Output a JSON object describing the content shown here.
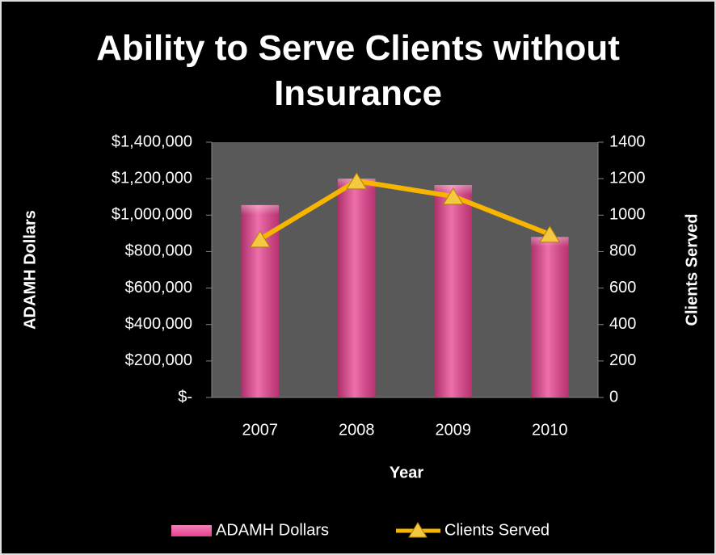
{
  "chart_data": {
    "type": "bar_line",
    "title": "Ability to Serve Clients without Insurance",
    "x_label": "Year",
    "y_label": "ADAMH Dollars",
    "y2_label": "Clients Served",
    "categories": [
      "2007",
      "2008",
      "2009",
      "2010"
    ],
    "series": [
      {
        "name": "ADAMH Dollars",
        "type": "bar",
        "color": "#e8408f",
        "values": [
          1055000,
          1200000,
          1165000,
          880000
        ]
      },
      {
        "name": "Clients Served",
        "type": "line",
        "axis": "y2",
        "color": "#f7b500",
        "values": [
          868,
          1187,
          1103,
          895
        ]
      }
    ],
    "ylim": [
      0,
      1400000
    ],
    "yticks": [
      {
        "value": 0,
        "label": "$-"
      },
      {
        "value": 200000,
        "label": "$200,000"
      },
      {
        "value": 400000,
        "label": "$400,000"
      },
      {
        "value": 600000,
        "label": "$600,000"
      },
      {
        "value": 800000,
        "label": "$800,000"
      },
      {
        "value": 1000000,
        "label": "$1,000,000"
      },
      {
        "value": 1200000,
        "label": "$1,200,000"
      },
      {
        "value": 1400000,
        "label": "$1,400,000"
      }
    ],
    "y2lim": [
      0,
      1400
    ],
    "y2ticks": [
      0,
      200,
      400,
      600,
      800,
      1000,
      1200,
      1400
    ],
    "legend": "bottom"
  }
}
